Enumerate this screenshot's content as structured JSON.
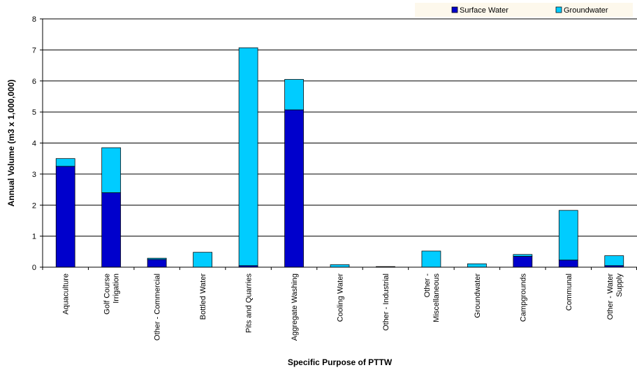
{
  "chart_data": {
    "type": "bar",
    "stacked": true,
    "categories": [
      [
        "Aquaculture"
      ],
      [
        "Golf Course",
        "Irrigation"
      ],
      [
        "Other - Commercial"
      ],
      [
        "Bottled Water"
      ],
      [
        "Pits and Quarries"
      ],
      [
        "Aggregate Washing"
      ],
      [
        "Cooling Water"
      ],
      [
        "Other - Industrial"
      ],
      [
        "Other -",
        "Miscellaneous"
      ],
      [
        "Groundwater"
      ],
      [
        "Campgrounds"
      ],
      [
        "Communal"
      ],
      [
        "Other - Water",
        "Supply"
      ]
    ],
    "series": [
      {
        "name": "Surface Water",
        "color": "#0000cc",
        "values": [
          3.25,
          2.4,
          0.25,
          0.0,
          0.05,
          5.07,
          0.0,
          0.0,
          0.0,
          0.0,
          0.35,
          0.23,
          0.05
        ]
      },
      {
        "name": "Groundwater",
        "color": "#00ccff",
        "values": [
          0.25,
          1.45,
          0.04,
          0.48,
          7.02,
          0.98,
          0.08,
          0.02,
          0.52,
          0.11,
          0.06,
          1.6,
          0.32
        ]
      }
    ],
    "xlabel": "Specific Purpose of PTTW",
    "ylabel": "Annual Volume (m3 x 1,000,000)",
    "ylim": [
      0,
      8
    ],
    "yticks": [
      0,
      1,
      2,
      3,
      4,
      5,
      6,
      7,
      8
    ],
    "grid": true,
    "legend_position": "top-right"
  }
}
